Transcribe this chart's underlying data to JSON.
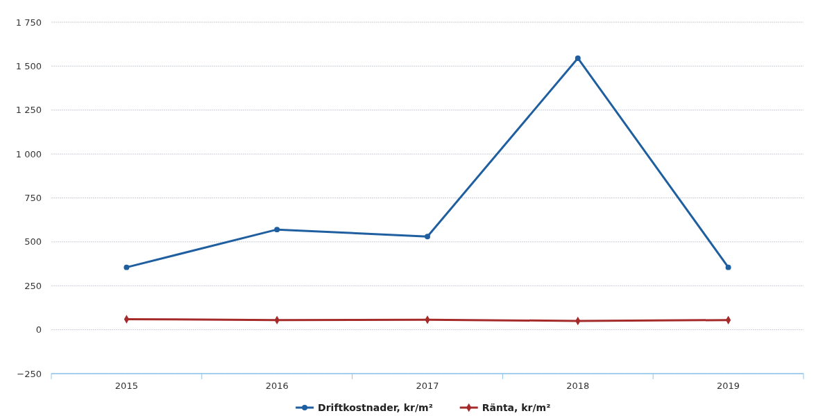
{
  "chart_data": {
    "type": "line",
    "categories": [
      "2015",
      "2016",
      "2017",
      "2018",
      "2019"
    ],
    "series": [
      {
        "name": "Driftkostnader, kr/m²",
        "color": "#1f5fa0",
        "marker": "circle",
        "values": [
          355,
          570,
          530,
          1545,
          355
        ]
      },
      {
        "name": "Ränta, kr/m²",
        "color": "#a52a2a",
        "marker": "diamond",
        "values": [
          60,
          55,
          57,
          50,
          55
        ]
      }
    ],
    "ylim": [
      -250,
      1750
    ],
    "yticks": [
      {
        "value": -250,
        "label": "−250"
      },
      0,
      250,
      500,
      750,
      {
        "value": 1000,
        "label": "1 000"
      },
      {
        "value": 1250,
        "label": "1 250"
      },
      {
        "value": 1500,
        "label": "1 500"
      },
      {
        "value": 1750,
        "label": "1 750"
      }
    ],
    "grid": "y",
    "legend": "bottom",
    "line_style": "solid"
  }
}
